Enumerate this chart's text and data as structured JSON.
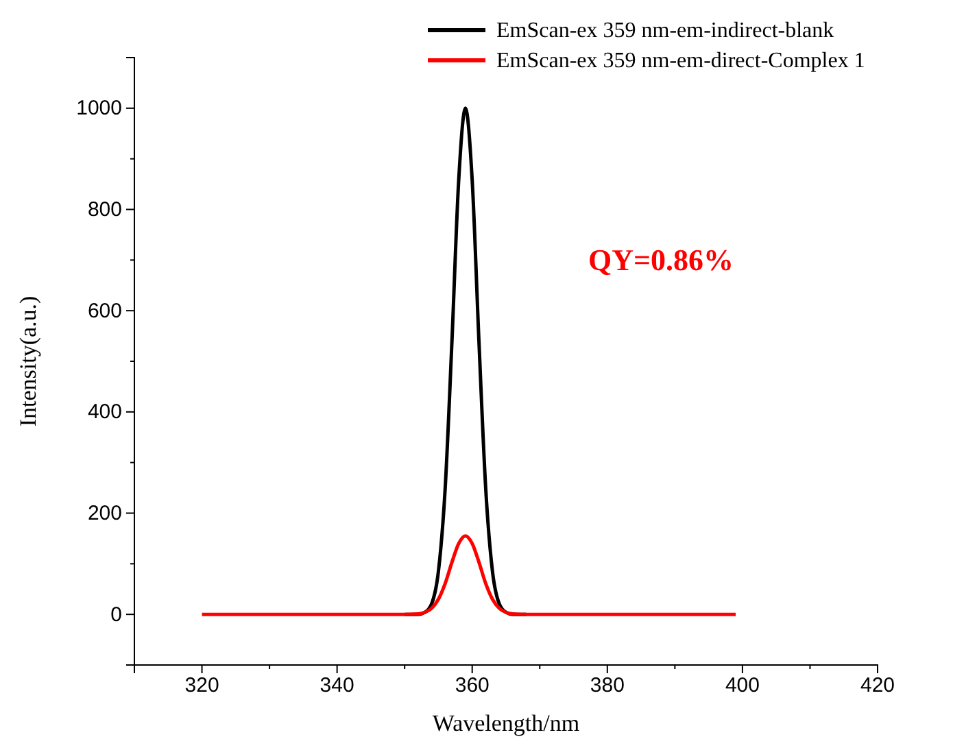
{
  "chart_data": {
    "type": "line",
    "xlabel": "Wavelength/nm",
    "ylabel": "Intensity(a.u.)",
    "xlim": [
      310,
      420
    ],
    "xticks": [
      320,
      340,
      360,
      380,
      400,
      420
    ],
    "ylim": [
      -100,
      1100
    ],
    "yticks": [
      0,
      200,
      400,
      600,
      800,
      1000
    ],
    "legend": "top right",
    "annotations": [
      "QY=0.86%"
    ],
    "series": [
      {
        "name": "EmScan-ex 359 nm-em-indirect-blank",
        "color": "#000000",
        "x": [
          350,
          352,
          353,
          354,
          355,
          356,
          357,
          358,
          359,
          360,
          361,
          362,
          363,
          364,
          365,
          366,
          368
        ],
        "values": [
          0,
          0,
          4,
          21,
          85,
          249,
          539,
          857,
          1000,
          857,
          539,
          249,
          85,
          21,
          4,
          0,
          0
        ]
      },
      {
        "name": "EmScan-ex 359 nm-em-direct-Complex 1",
        "color": "#ff0000",
        "x": [
          320,
          340,
          350,
          352,
          353,
          354,
          355,
          356,
          357,
          358,
          359,
          360,
          361,
          362,
          363,
          364,
          365,
          366,
          368,
          380,
          399
        ],
        "values": [
          0,
          0,
          0,
          1,
          4,
          12,
          30,
          61,
          103,
          140,
          155,
          140,
          103,
          61,
          30,
          12,
          4,
          1,
          0,
          0,
          0
        ]
      }
    ]
  }
}
